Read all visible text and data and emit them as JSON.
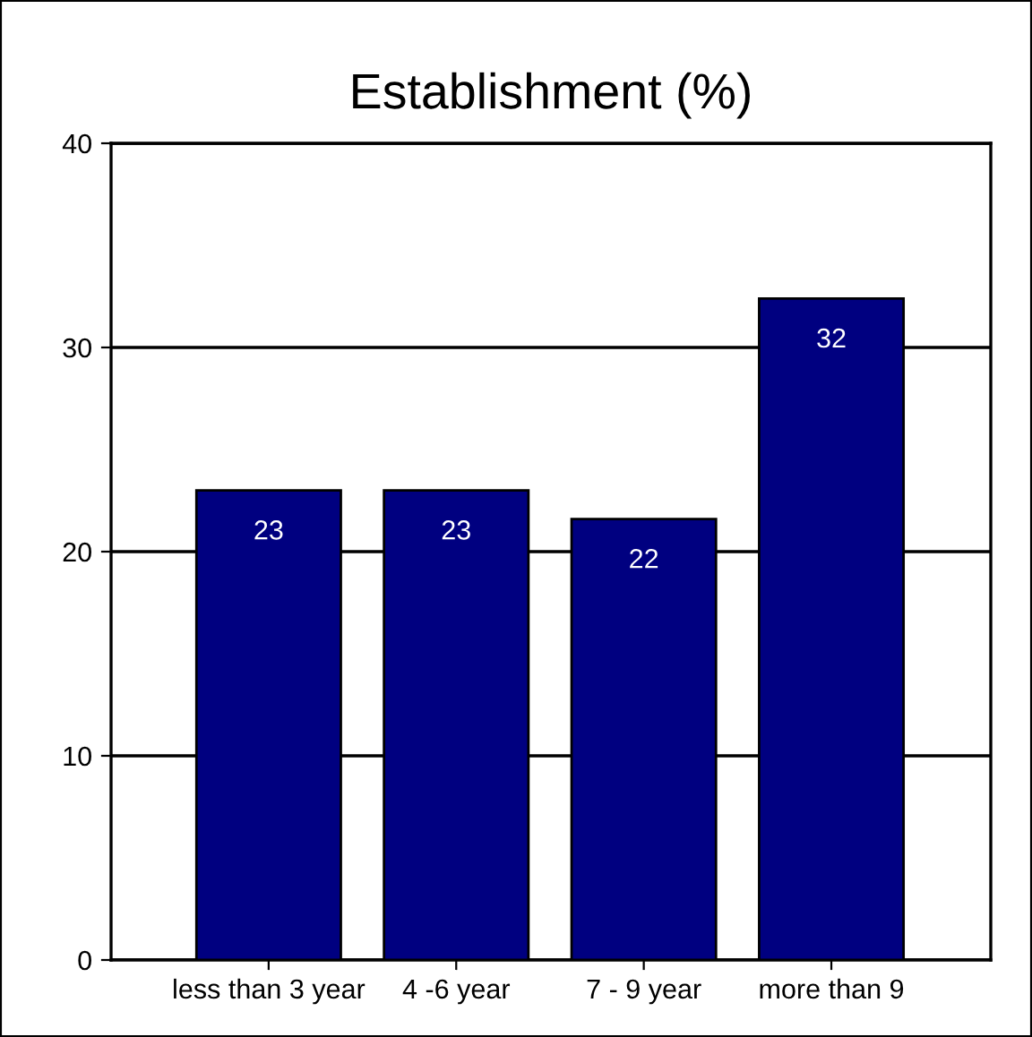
{
  "chart_data": {
    "type": "bar",
    "title": "Establishment (%)",
    "categories": [
      "less than 3 year",
      "4 -6 year",
      "7 - 9 year",
      "more than 9"
    ],
    "values": [
      23.0,
      23.0,
      21.6,
      32.4
    ],
    "value_labels": [
      "23",
      "23",
      "22",
      "32"
    ],
    "color": "#000080",
    "ylim": [
      0,
      40
    ],
    "yticks": [
      0,
      10,
      20,
      30,
      40
    ],
    "grid": "y"
  }
}
